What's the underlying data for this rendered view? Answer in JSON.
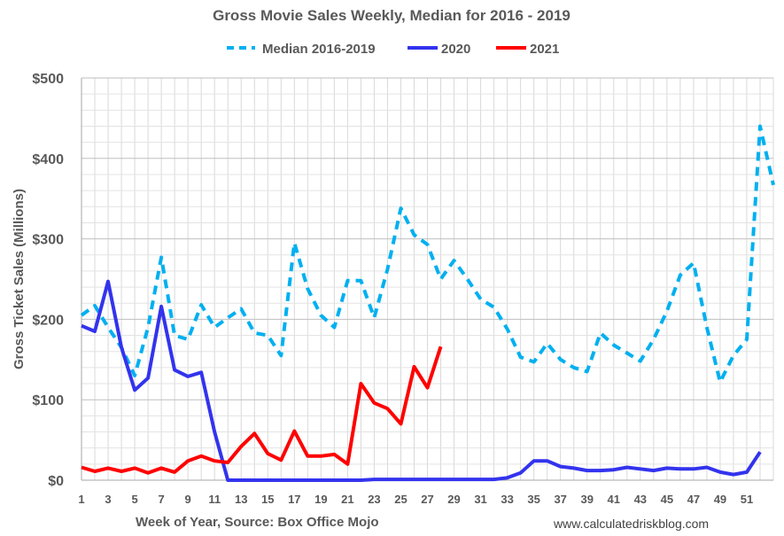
{
  "chart_data": {
    "type": "line",
    "title": "Gross Movie Sales Weekly, Median for 2016 - 2019",
    "xlabel": "Week of Year, Source: Box Office Mojo",
    "ylabel": "Gross Ticket Sales (Millions)",
    "source_note": "www.calculatedriskblog.com",
    "xlim": [
      1,
      53
    ],
    "ylim": [
      0,
      500
    ],
    "x_ticks": [
      1,
      3,
      5,
      7,
      9,
      11,
      13,
      15,
      17,
      19,
      21,
      23,
      25,
      27,
      29,
      31,
      33,
      35,
      37,
      39,
      41,
      43,
      45,
      47,
      49,
      51
    ],
    "y_ticks": [
      {
        "value": 0,
        "label": "$0"
      },
      {
        "value": 100,
        "label": "$100"
      },
      {
        "value": 200,
        "label": "$200"
      },
      {
        "value": 300,
        "label": "$300"
      },
      {
        "value": 400,
        "label": "$400"
      },
      {
        "value": 500,
        "label": "$500"
      }
    ],
    "grid": true,
    "legend_position": "top",
    "series": [
      {
        "name": "Median 2016-2019",
        "color": "#00B0F0",
        "style": "dashed",
        "x": [
          1,
          2,
          3,
          4,
          5,
          6,
          7,
          8,
          9,
          10,
          11,
          12,
          13,
          14,
          15,
          16,
          17,
          18,
          19,
          20,
          21,
          22,
          23,
          24,
          25,
          26,
          27,
          28,
          29,
          30,
          31,
          32,
          33,
          34,
          35,
          36,
          37,
          38,
          39,
          40,
          41,
          42,
          43,
          44,
          45,
          46,
          47,
          48,
          49,
          50,
          51,
          52,
          53
        ],
        "values": [
          205,
          217,
          190,
          165,
          130,
          190,
          277,
          180,
          175,
          218,
          190,
          202,
          213,
          183,
          180,
          155,
          295,
          238,
          205,
          190,
          248,
          248,
          202,
          262,
          338,
          305,
          293,
          250,
          273,
          250,
          225,
          215,
          188,
          153,
          147,
          170,
          150,
          140,
          135,
          183,
          168,
          158,
          148,
          175,
          210,
          255,
          270,
          190,
          122,
          155,
          175,
          440,
          367
        ]
      },
      {
        "name": "2020",
        "color": "#3333EE",
        "style": "solid",
        "x": [
          1,
          2,
          3,
          4,
          5,
          6,
          7,
          8,
          9,
          10,
          11,
          12,
          13,
          14,
          15,
          16,
          17,
          18,
          19,
          20,
          21,
          22,
          23,
          24,
          25,
          26,
          27,
          28,
          29,
          30,
          31,
          32,
          33,
          34,
          35,
          36,
          37,
          38,
          39,
          40,
          41,
          42,
          43,
          44,
          45,
          46,
          47,
          48,
          49,
          50,
          51,
          52,
          53
        ],
        "values": [
          192,
          185,
          247,
          165,
          112,
          127,
          216,
          137,
          129,
          134,
          60,
          0,
          0,
          0,
          0,
          0,
          0,
          0,
          0,
          0,
          0,
          0,
          1,
          1,
          1,
          1,
          1,
          1,
          1,
          1,
          1,
          1,
          3,
          9,
          24,
          24,
          17,
          15,
          12,
          12,
          13,
          16,
          14,
          12,
          15,
          14,
          14,
          16,
          10,
          7,
          10,
          35,
          null
        ]
      },
      {
        "name": "2021",
        "color": "#FF0000",
        "style": "solid",
        "x": [
          1,
          2,
          3,
          4,
          5,
          6,
          7,
          8,
          9,
          10,
          11,
          12,
          13,
          14,
          15,
          16,
          17,
          18,
          19,
          20,
          21,
          22,
          23,
          24,
          25,
          26,
          27,
          28
        ],
        "values": [
          16,
          11,
          15,
          11,
          15,
          9,
          15,
          10,
          24,
          30,
          24,
          22,
          42,
          58,
          33,
          25,
          61,
          30,
          30,
          32,
          20,
          120,
          96,
          89,
          70,
          141,
          115,
          166
        ]
      }
    ]
  }
}
